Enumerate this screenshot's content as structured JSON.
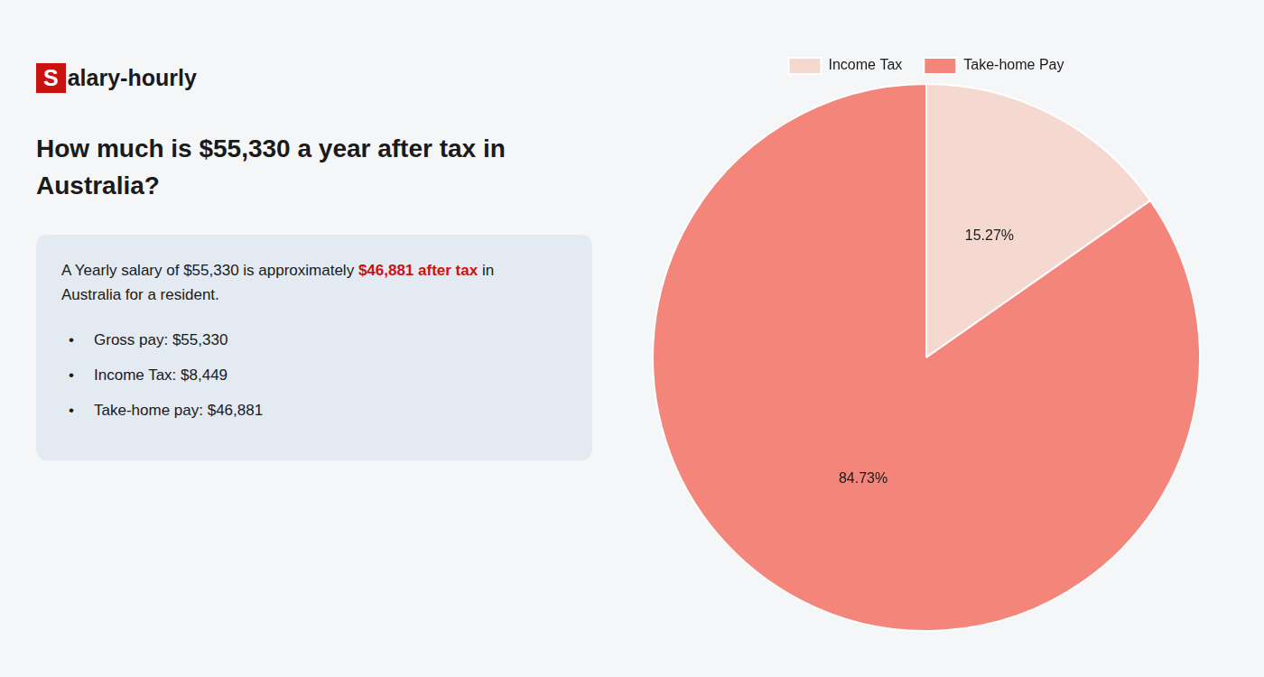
{
  "chart_data": {
    "type": "pie",
    "title": [
      "How much is $55,330 a year after tax in",
      "Australia?"
    ],
    "categories": [
      "Income Tax",
      "Take-home Pay"
    ],
    "values": [
      15.27,
      84.73
    ],
    "value_labels": [
      "15.27%",
      "84.73%"
    ],
    "colors": [
      "#f5d9d0",
      "#f4857a"
    ],
    "data_labels": true,
    "legend": "top",
    "annotations": [
      [
        {
          "text": "S",
          "color": "#cc1111"
        },
        {
          "text": "alary-hourly"
        }
      ],
      [
        {
          "text": "A Yearly salary of $55,330 is approximately "
        },
        {
          "text": "$46,881 after tax",
          "color": "#cc1111"
        },
        {
          "text": " in"
        }
      ],
      [
        {
          "text": "Australia for a resident."
        }
      ],
      [
        {
          "text": "•"
        },
        {
          "text": "Gross pay: $55,330"
        }
      ],
      [
        {
          "text": "•"
        },
        {
          "text": "Income Tax: $8,449"
        }
      ],
      [
        {
          "text": "•"
        },
        {
          "text": "Take-home pay: $46,881"
        }
      ]
    ]
  }
}
